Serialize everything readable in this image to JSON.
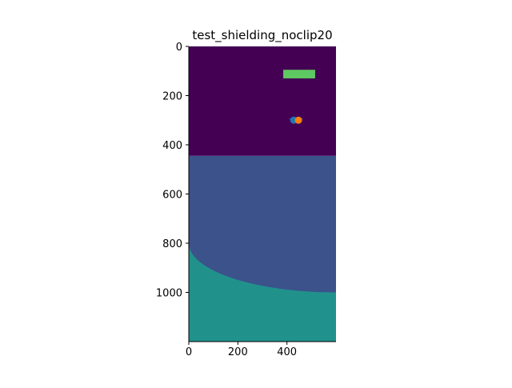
{
  "chart_data": {
    "type": "heatmap",
    "title": "test_shielding_noclip20",
    "xlabel": "",
    "ylabel": "",
    "xlim": [
      0,
      600
    ],
    "ylim": [
      1200,
      0
    ],
    "y_inverted": true,
    "grid": false,
    "x_ticks": [
      0,
      200,
      400
    ],
    "y_ticks": [
      0,
      200,
      400,
      600,
      800,
      1000
    ],
    "colors": {
      "region_top": "#440154",
      "region_middle": "#3b528b",
      "region_bottom": "#21918c",
      "rectangle": "#5ec962",
      "marker_a": "#1f77b4",
      "marker_b": "#ff7f0e",
      "marker_line": "#1f77b4"
    },
    "regions": [
      {
        "name": "top",
        "y_from": 0,
        "y_to": 445,
        "color_key": "region_top"
      },
      {
        "name": "middle",
        "y_from": 445,
        "y_to": 1000,
        "color_key": "region_middle"
      },
      {
        "name": "bottom_arc",
        "boundary": "circle",
        "center_x": 600,
        "center_y": 800,
        "radius_x": 600,
        "radius_y": 200,
        "color_key": "region_bottom"
      }
    ],
    "rectangle": {
      "x_from": 385,
      "x_to": 515,
      "y_from": 95,
      "y_to": 130
    },
    "line": {
      "x_from": 410,
      "x_to": 465,
      "y": 295
    },
    "points": [
      {
        "x": 428,
        "y": 300,
        "color_key": "marker_a"
      },
      {
        "x": 447,
        "y": 300,
        "color_key": "marker_b"
      }
    ]
  }
}
